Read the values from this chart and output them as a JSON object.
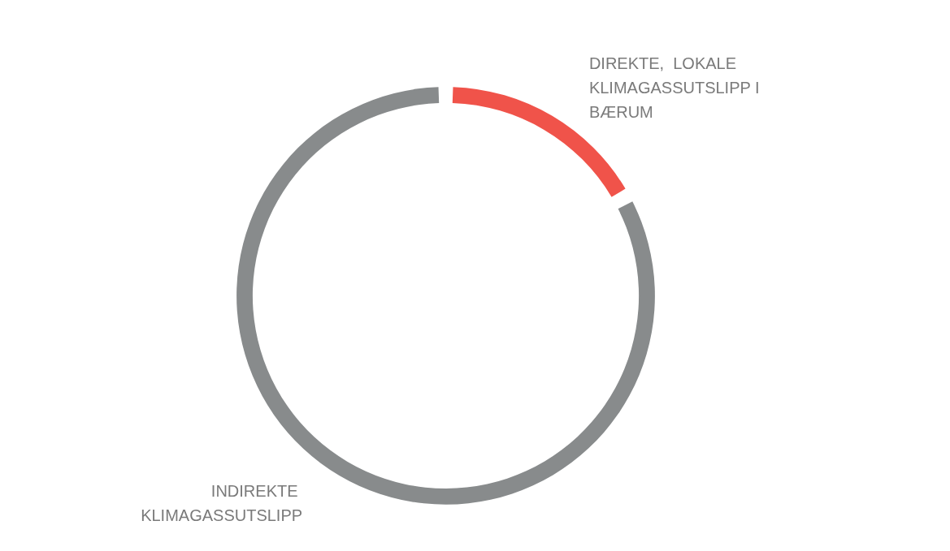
{
  "chart_data": {
    "type": "donut",
    "categories": [
      "DIREKTE,  LOKALE KLIMAGASSUTSLIPP I BÆRUM",
      "INDIREKTE KLIMAGASSUTSLIPP"
    ],
    "values": [
      17,
      83
    ],
    "colors": [
      "#f0534a",
      "#888b8c"
    ],
    "legend": false
  }
}
